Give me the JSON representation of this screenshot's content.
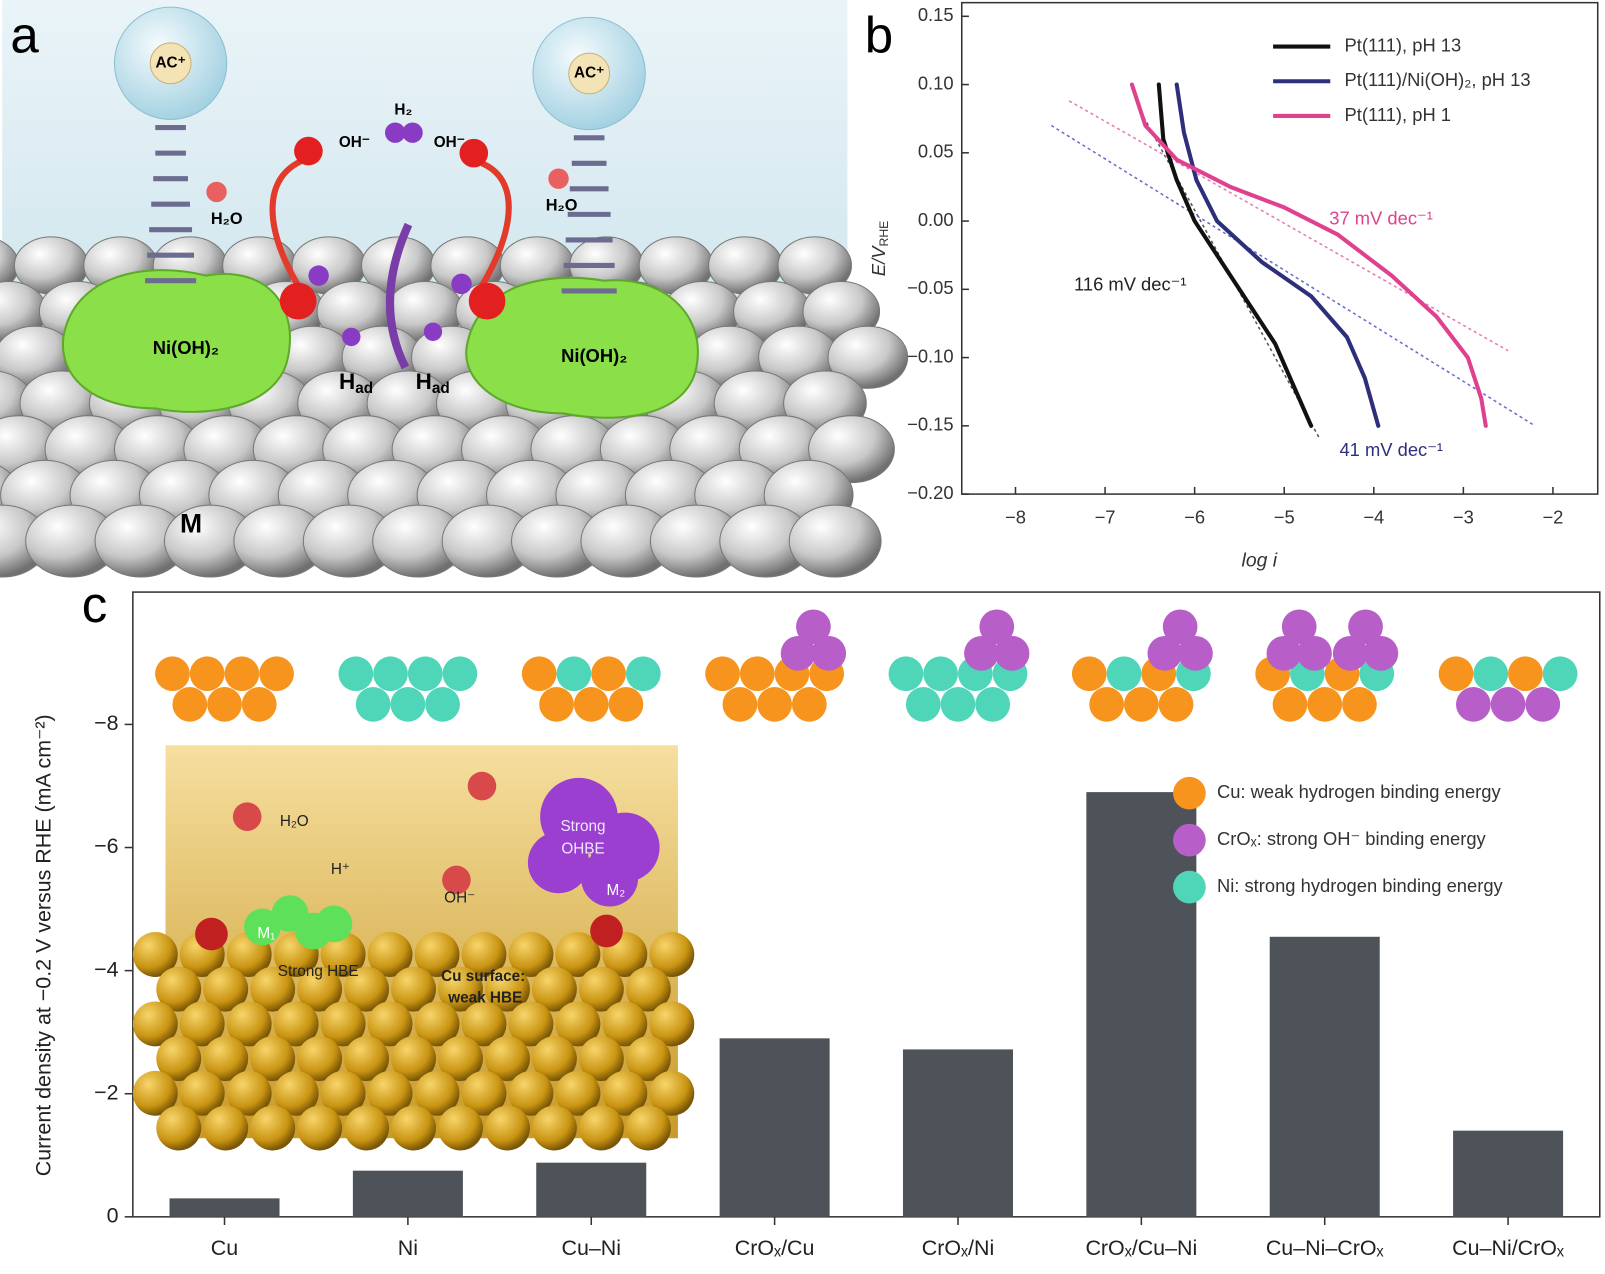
{
  "panel_labels": [
    "a",
    "b",
    "c"
  ],
  "diagram": {
    "cation": [
      "AC⁺",
      "AC⁺"
    ],
    "hydrogen": "H₂",
    "hydroxide": [
      "OH⁻",
      "OH⁻"
    ],
    "water": [
      "H₂O",
      "H₂O"
    ],
    "cluster": [
      "Ni(OH)₂",
      "Ni(OH)₂"
    ],
    "adsorbed": [
      {
        "main": "H",
        "sub": "ad"
      },
      {
        "main": "H",
        "sub": "ad"
      }
    ],
    "metal": "M"
  },
  "inset": {
    "water": "H₂O",
    "proton": "H⁺",
    "hydroxide": "OH⁻",
    "ohbe": [
      "Strong",
      "OHBE"
    ],
    "m1": "M₁",
    "m2": "M₂",
    "hbe": "Strong HBE",
    "surface": [
      "Cu surface:",
      "weak HBE"
    ]
  },
  "chart_data": [
    {
      "type": "line",
      "xlabel": "log i",
      "ylabel": {
        "main": "E/V",
        "sub": "RHE"
      },
      "xlim": [
        -8.6,
        -1.5
      ],
      "ylim": [
        -0.2,
        0.16
      ],
      "xticks": [
        {
          "value": -8,
          "label": "−8"
        },
        {
          "value": -7,
          "label": "−7"
        },
        {
          "value": -6,
          "label": "−6"
        },
        {
          "value": -5,
          "label": "−5"
        },
        {
          "value": -4,
          "label": "−4"
        },
        {
          "value": -3,
          "label": "−3"
        },
        {
          "value": -2,
          "label": "−2"
        }
      ],
      "yticks": [
        0.15,
        {
          "value": 0.1,
          "label": "0.10"
        },
        0.05,
        {
          "value": 0,
          "label": "0.00"
        },
        {
          "value": -0.05,
          "label": "−0.05"
        },
        {
          "value": -0.1,
          "label": "−0.10"
        },
        {
          "value": -0.15,
          "label": "−0.15"
        },
        {
          "value": -0.2,
          "label": "−0.20"
        }
      ],
      "legend": "upper right",
      "series": [
        {
          "name": "Pt(111), pH 13",
          "color": "#111111",
          "x": [
            -6.4,
            -6.35,
            -6.2,
            -6.0,
            -5.7,
            -5.4,
            -5.1,
            -4.9,
            -4.7
          ],
          "values": [
            0.1,
            0.06,
            0.03,
            0.0,
            -0.03,
            -0.06,
            -0.09,
            -0.12,
            -0.15
          ]
        },
        {
          "name": "Pt(111)/Ni(OH)₂, pH 13",
          "color": "#2e2f7a",
          "x": [
            -6.2,
            -6.12,
            -5.98,
            -5.75,
            -5.25,
            -4.7,
            -4.3,
            -4.1,
            -3.95
          ],
          "values": [
            0.1,
            0.065,
            0.03,
            0.0,
            -0.03,
            -0.055,
            -0.085,
            -0.115,
            -0.15
          ]
        },
        {
          "name": "Pt(111), pH 1",
          "color": "#e0418f",
          "x": [
            -6.7,
            -6.55,
            -6.2,
            -5.6,
            -5.0,
            -4.4,
            -3.8,
            -3.3,
            -2.95,
            -2.8,
            -2.75
          ],
          "values": [
            0.1,
            0.07,
            0.045,
            0.025,
            0.01,
            -0.01,
            -0.04,
            -0.07,
            -0.1,
            -0.13,
            -0.15
          ]
        }
      ],
      "fit_lines": [
        {
          "color": "#555555",
          "x": [
            -6.6,
            -4.6
          ],
          "values": [
            0.08,
            -0.16
          ]
        },
        {
          "color": "#6a6ad0",
          "x": [
            -7.6,
            -2.2
          ],
          "values": [
            0.07,
            -0.15
          ]
        },
        {
          "color": "#e878b8",
          "x": [
            -7.4,
            -2.5
          ],
          "values": [
            0.088,
            -0.095
          ]
        }
      ],
      "annotations": [
        {
          "text": "116 mV dec⁻¹",
          "color": "#222222"
        },
        {
          "text": "37 mV dec⁻¹",
          "color": "#e0418f"
        },
        {
          "text": "41 mV dec⁻¹",
          "color": "#2e2f7a"
        }
      ]
    },
    {
      "type": "bar",
      "ylabel": "Current density at −0.2 V versus RHE (mA cm⁻²)",
      "categories": [
        "Cu",
        "Ni",
        "Cu–Ni",
        "CrOₓ/Cu",
        "CrOₓ/Ni",
        "CrOₓ/Cu–Ni",
        "Cu–Ni–CrOₓ",
        "Cu–Ni/CrOₓ"
      ],
      "values": [
        -0.3,
        -0.75,
        -0.88,
        -2.9,
        -2.72,
        -6.9,
        -4.55,
        -1.4
      ],
      "color": "#4d5359",
      "ylim": [
        0,
        -10.15
      ],
      "yticks": [
        0,
        {
          "value": -2,
          "label": "−2"
        },
        {
          "value": -4,
          "label": "−4"
        },
        {
          "value": -6,
          "label": "−6"
        },
        {
          "value": -8,
          "label": "−8"
        }
      ],
      "legend": [
        {
          "label": "Cu: weak hydrogen binding energy",
          "color": "#f7941d"
        },
        {
          "label": "CrOₓ: strong OH⁻ binding energy",
          "color": "#b85ec8"
        },
        {
          "label": "Ni: strong hydrogen binding energy",
          "color": "#4fd6b9"
        }
      ]
    }
  ]
}
